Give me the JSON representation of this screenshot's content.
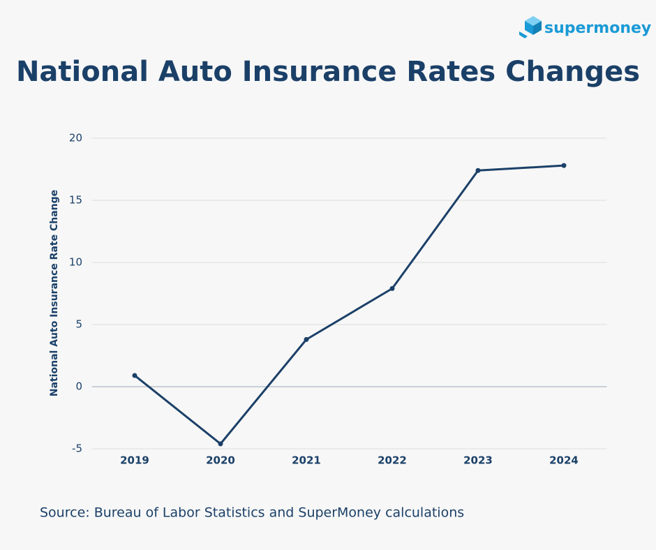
{
  "brand": "supermoney",
  "chart_data": {
    "type": "line",
    "title": "National Auto Insurance Rates Changes",
    "y_label": "National Auto Insurance Rate Change",
    "source": "Source: Bureau of Labor Statistics and SuperMoney calculations",
    "categories": [
      "2019",
      "2020",
      "2021",
      "2022",
      "2023",
      "2024"
    ],
    "values": [
      0.9,
      -4.6,
      3.8,
      7.9,
      17.4,
      17.8
    ],
    "color": "#1b4068",
    "ylim": [
      -5,
      20
    ],
    "yticks": [
      -5,
      0,
      5,
      10,
      15,
      20
    ],
    "grid": true
  }
}
